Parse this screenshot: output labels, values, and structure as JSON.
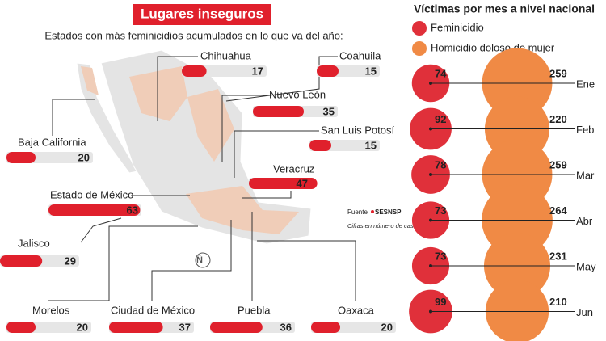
{
  "chart_data": [
    {
      "type": "bar",
      "title": "Lugares inseguros",
      "subtitle": "Estados con más feminicidios acumulados en lo que va del año:",
      "categories": [
        "Chihuahua",
        "Coahuila",
        "Nuevo León",
        "San Luis Potosí",
        "Baja California",
        "Veracruz",
        "Estado de México",
        "Jalisco",
        "Morelos",
        "Ciudad de México",
        "Puebla",
        "Oaxaca"
      ],
      "values": [
        17,
        15,
        35,
        15,
        20,
        47,
        63,
        29,
        20,
        37,
        36,
        20
      ],
      "color": "#e0202c",
      "source": "Fuente",
      "source_name": "SESNSP",
      "note": "Cifras en número de casos"
    },
    {
      "type": "bubble",
      "title": "Víctimas por mes a nivel nacional",
      "categories": [
        "Ene",
        "Feb",
        "Mar",
        "Abr",
        "May",
        "Jun"
      ],
      "series": [
        {
          "name": "Feminicidio",
          "color": "#e0303a",
          "values": [
            74,
            92,
            78,
            73,
            73,
            99
          ]
        },
        {
          "name": "Homicidio doloso de mujer",
          "color": "#f08a45",
          "values": [
            259,
            220,
            259,
            264,
            231,
            210
          ]
        }
      ]
    }
  ]
}
